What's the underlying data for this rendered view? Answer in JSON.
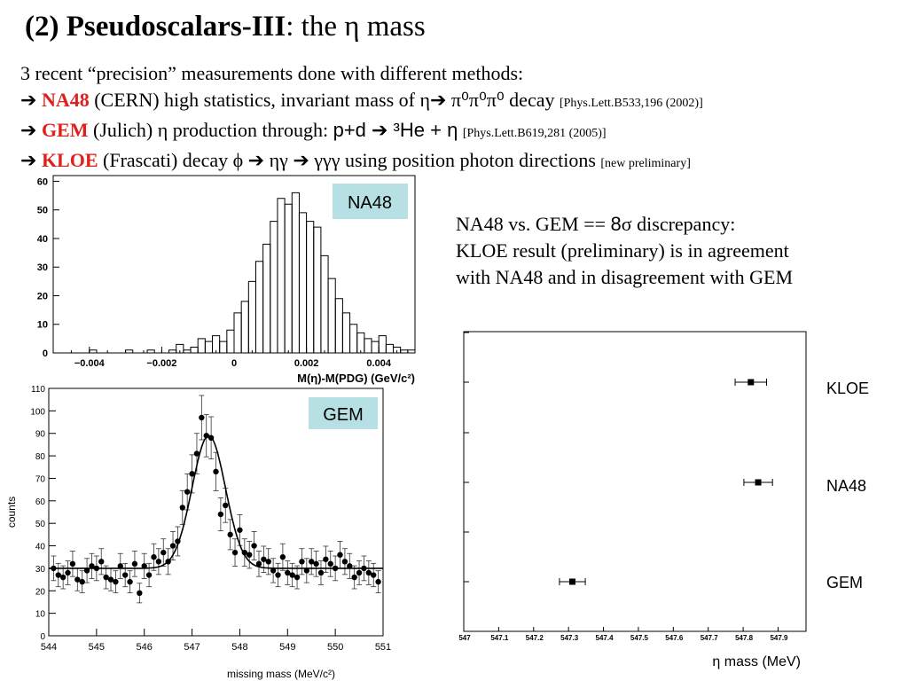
{
  "title": {
    "bold": "(2) Pseudoscalars-III",
    "rest": ": the η mass"
  },
  "intro": "3 recent “precision” measurements done with different methods:",
  "arrow": "➔",
  "methods": [
    {
      "name": "NA48",
      "lab": " (CERN)  high statistics, invariant mass of η",
      "mid1": "➔",
      "mid2": " π⁰π⁰π⁰ decay ",
      "ref": "[Phys.Lett.B533,196 (2002)]"
    },
    {
      "name": "GEM",
      "lab": " (Julich)  η production through:  ",
      "sans": "p+d ➔ ³He + η",
      "ref": "[Phys.Lett.B619,281 (2005)]"
    },
    {
      "name": "KLOE",
      "lab": " (Frascati)  decay ϕ ➔ ηγ ➔ γγγ using position photon directions ",
      "ref": "[new preliminary]"
    }
  ],
  "note": {
    "line1a": "NA48 vs. GEM == ",
    "line1b": "8",
    "line1c": "σ discrepancy:",
    "line2": "KLOE result (preliminary) is in agreement",
    "line3": "with NA48 and in disagreement with GEM"
  },
  "colors": {
    "label_box": "#b6e0e4",
    "highlight": "#e0201c"
  },
  "chart_data": [
    {
      "type": "bar",
      "style": "histogram",
      "label": "NA48",
      "xlabel": "M(η)-M(PDG) (GeV/c²)",
      "ylabel": "",
      "xlim": [
        -0.005,
        0.005
      ],
      "ylim": [
        0,
        62
      ],
      "xticks": [
        -0.004,
        -0.002,
        0,
        0.002,
        0.004
      ],
      "xtick_labels": [
        "−0.004",
        "−0.002",
        "0",
        "0.002",
        "0.004"
      ],
      "yticks": [
        0,
        10,
        20,
        30,
        40,
        50,
        60
      ],
      "bin_width": 0.0002,
      "bin_start": -0.004,
      "values": [
        1,
        0,
        0,
        0,
        0,
        1,
        0,
        0,
        1,
        0,
        0,
        1,
        3,
        1,
        2,
        5,
        4,
        6,
        4,
        8,
        14,
        18,
        25,
        32,
        38,
        46,
        54,
        52,
        56,
        49,
        46,
        44,
        34,
        26,
        19,
        14,
        10,
        7,
        5,
        4,
        6,
        3,
        2,
        1,
        1,
        0
      ]
    },
    {
      "type": "scatter",
      "label": "GEM",
      "xlabel": "missing mass (MeV/c²)",
      "ylabel": "counts",
      "xlim": [
        544,
        551
      ],
      "ylim": [
        0,
        110
      ],
      "xticks": [
        544,
        545,
        546,
        547,
        548,
        549,
        550,
        551
      ],
      "yticks": [
        0,
        10,
        20,
        30,
        40,
        50,
        60,
        70,
        80,
        90,
        100,
        110
      ],
      "x": [
        544.1,
        544.2,
        544.3,
        544.4,
        544.5,
        544.6,
        544.7,
        544.8,
        544.9,
        545.0,
        545.1,
        545.2,
        545.3,
        545.4,
        545.5,
        545.6,
        545.7,
        545.8,
        545.9,
        546.0,
        546.1,
        546.2,
        546.3,
        546.4,
        546.5,
        546.6,
        546.7,
        546.8,
        546.9,
        547.0,
        547.1,
        547.2,
        547.3,
        547.4,
        547.5,
        547.6,
        547.7,
        547.8,
        547.9,
        548.0,
        548.1,
        548.2,
        548.3,
        548.4,
        548.5,
        548.6,
        548.7,
        548.8,
        548.9,
        549.0,
        549.1,
        549.2,
        549.3,
        549.4,
        549.5,
        549.6,
        549.7,
        549.8,
        549.9,
        550.0,
        550.1,
        550.2,
        550.3,
        550.4,
        550.5,
        550.6,
        550.7,
        550.8,
        550.9
      ],
      "y": [
        30,
        27,
        26,
        28,
        32,
        25,
        24,
        29,
        31,
        30,
        33,
        26,
        25,
        24,
        31,
        27,
        24,
        32,
        19,
        31,
        27,
        35,
        33,
        37,
        33,
        40,
        42,
        57,
        64,
        72,
        81,
        97,
        89,
        88,
        73,
        54,
        58,
        45,
        37,
        47,
        37,
        36,
        40,
        32,
        34,
        33,
        29,
        27,
        35,
        28,
        27,
        26,
        33,
        29,
        33,
        32,
        28,
        34,
        32,
        30,
        36,
        33,
        31,
        26,
        28,
        30,
        28,
        27,
        24
      ],
      "fit": {
        "model": "gaussian+background",
        "background": 30,
        "amplitude": 59,
        "mean": 547.35,
        "sigma": 0.35
      }
    },
    {
      "type": "scatter",
      "label": "η mass comparison",
      "xlabel": "η mass (MeV)",
      "ylabel": "",
      "xlim": [
        547.0,
        547.98
      ],
      "xticks": [
        547,
        547.1,
        547.2,
        547.3,
        547.4,
        547.5,
        547.6,
        547.7,
        547.8,
        547.9
      ],
      "xtick_labels": [
        "547",
        "547.1",
        "547.2",
        "547.3",
        "547.4",
        "547.5",
        "547.6",
        "547.7",
        "547.8",
        "547.9"
      ],
      "points": [
        {
          "name": "KLOE",
          "value": 547.822,
          "error": 0.045
        },
        {
          "name": "NA48",
          "value": 547.843,
          "error": 0.041
        },
        {
          "name": "GEM",
          "value": 547.311,
          "error": 0.037
        }
      ]
    }
  ]
}
